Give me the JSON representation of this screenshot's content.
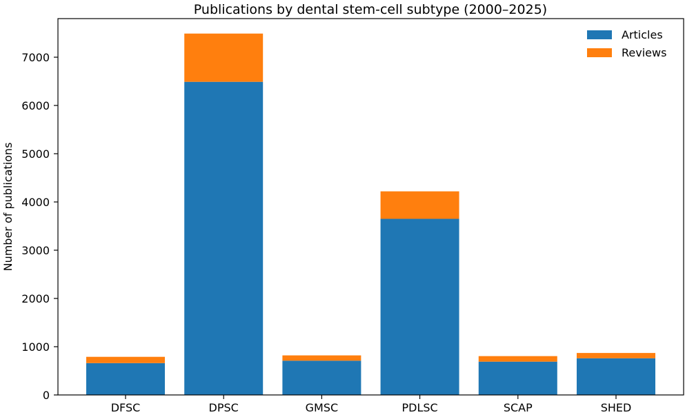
{
  "chart_data": {
    "type": "bar",
    "stacked": true,
    "title": "Publications by dental stem-cell subtype (2000–2025)",
    "xlabel": "",
    "ylabel": "Number of publications",
    "categories": [
      "DFSC",
      "DPSC",
      "GMSC",
      "PDLSC",
      "SCAP",
      "SHED"
    ],
    "series": [
      {
        "name": "Articles",
        "color": "#1f77b4",
        "values": [
          660,
          6490,
          710,
          3650,
          690,
          760
        ]
      },
      {
        "name": "Reviews",
        "color": "#ff7f0e",
        "values": [
          130,
          1000,
          110,
          570,
          115,
          110
        ]
      }
    ],
    "ylim": [
      0,
      7800
    ],
    "yticks": [
      0,
      1000,
      2000,
      3000,
      4000,
      5000,
      6000,
      7000
    ],
    "grid": false,
    "legend_position": "top-right"
  }
}
